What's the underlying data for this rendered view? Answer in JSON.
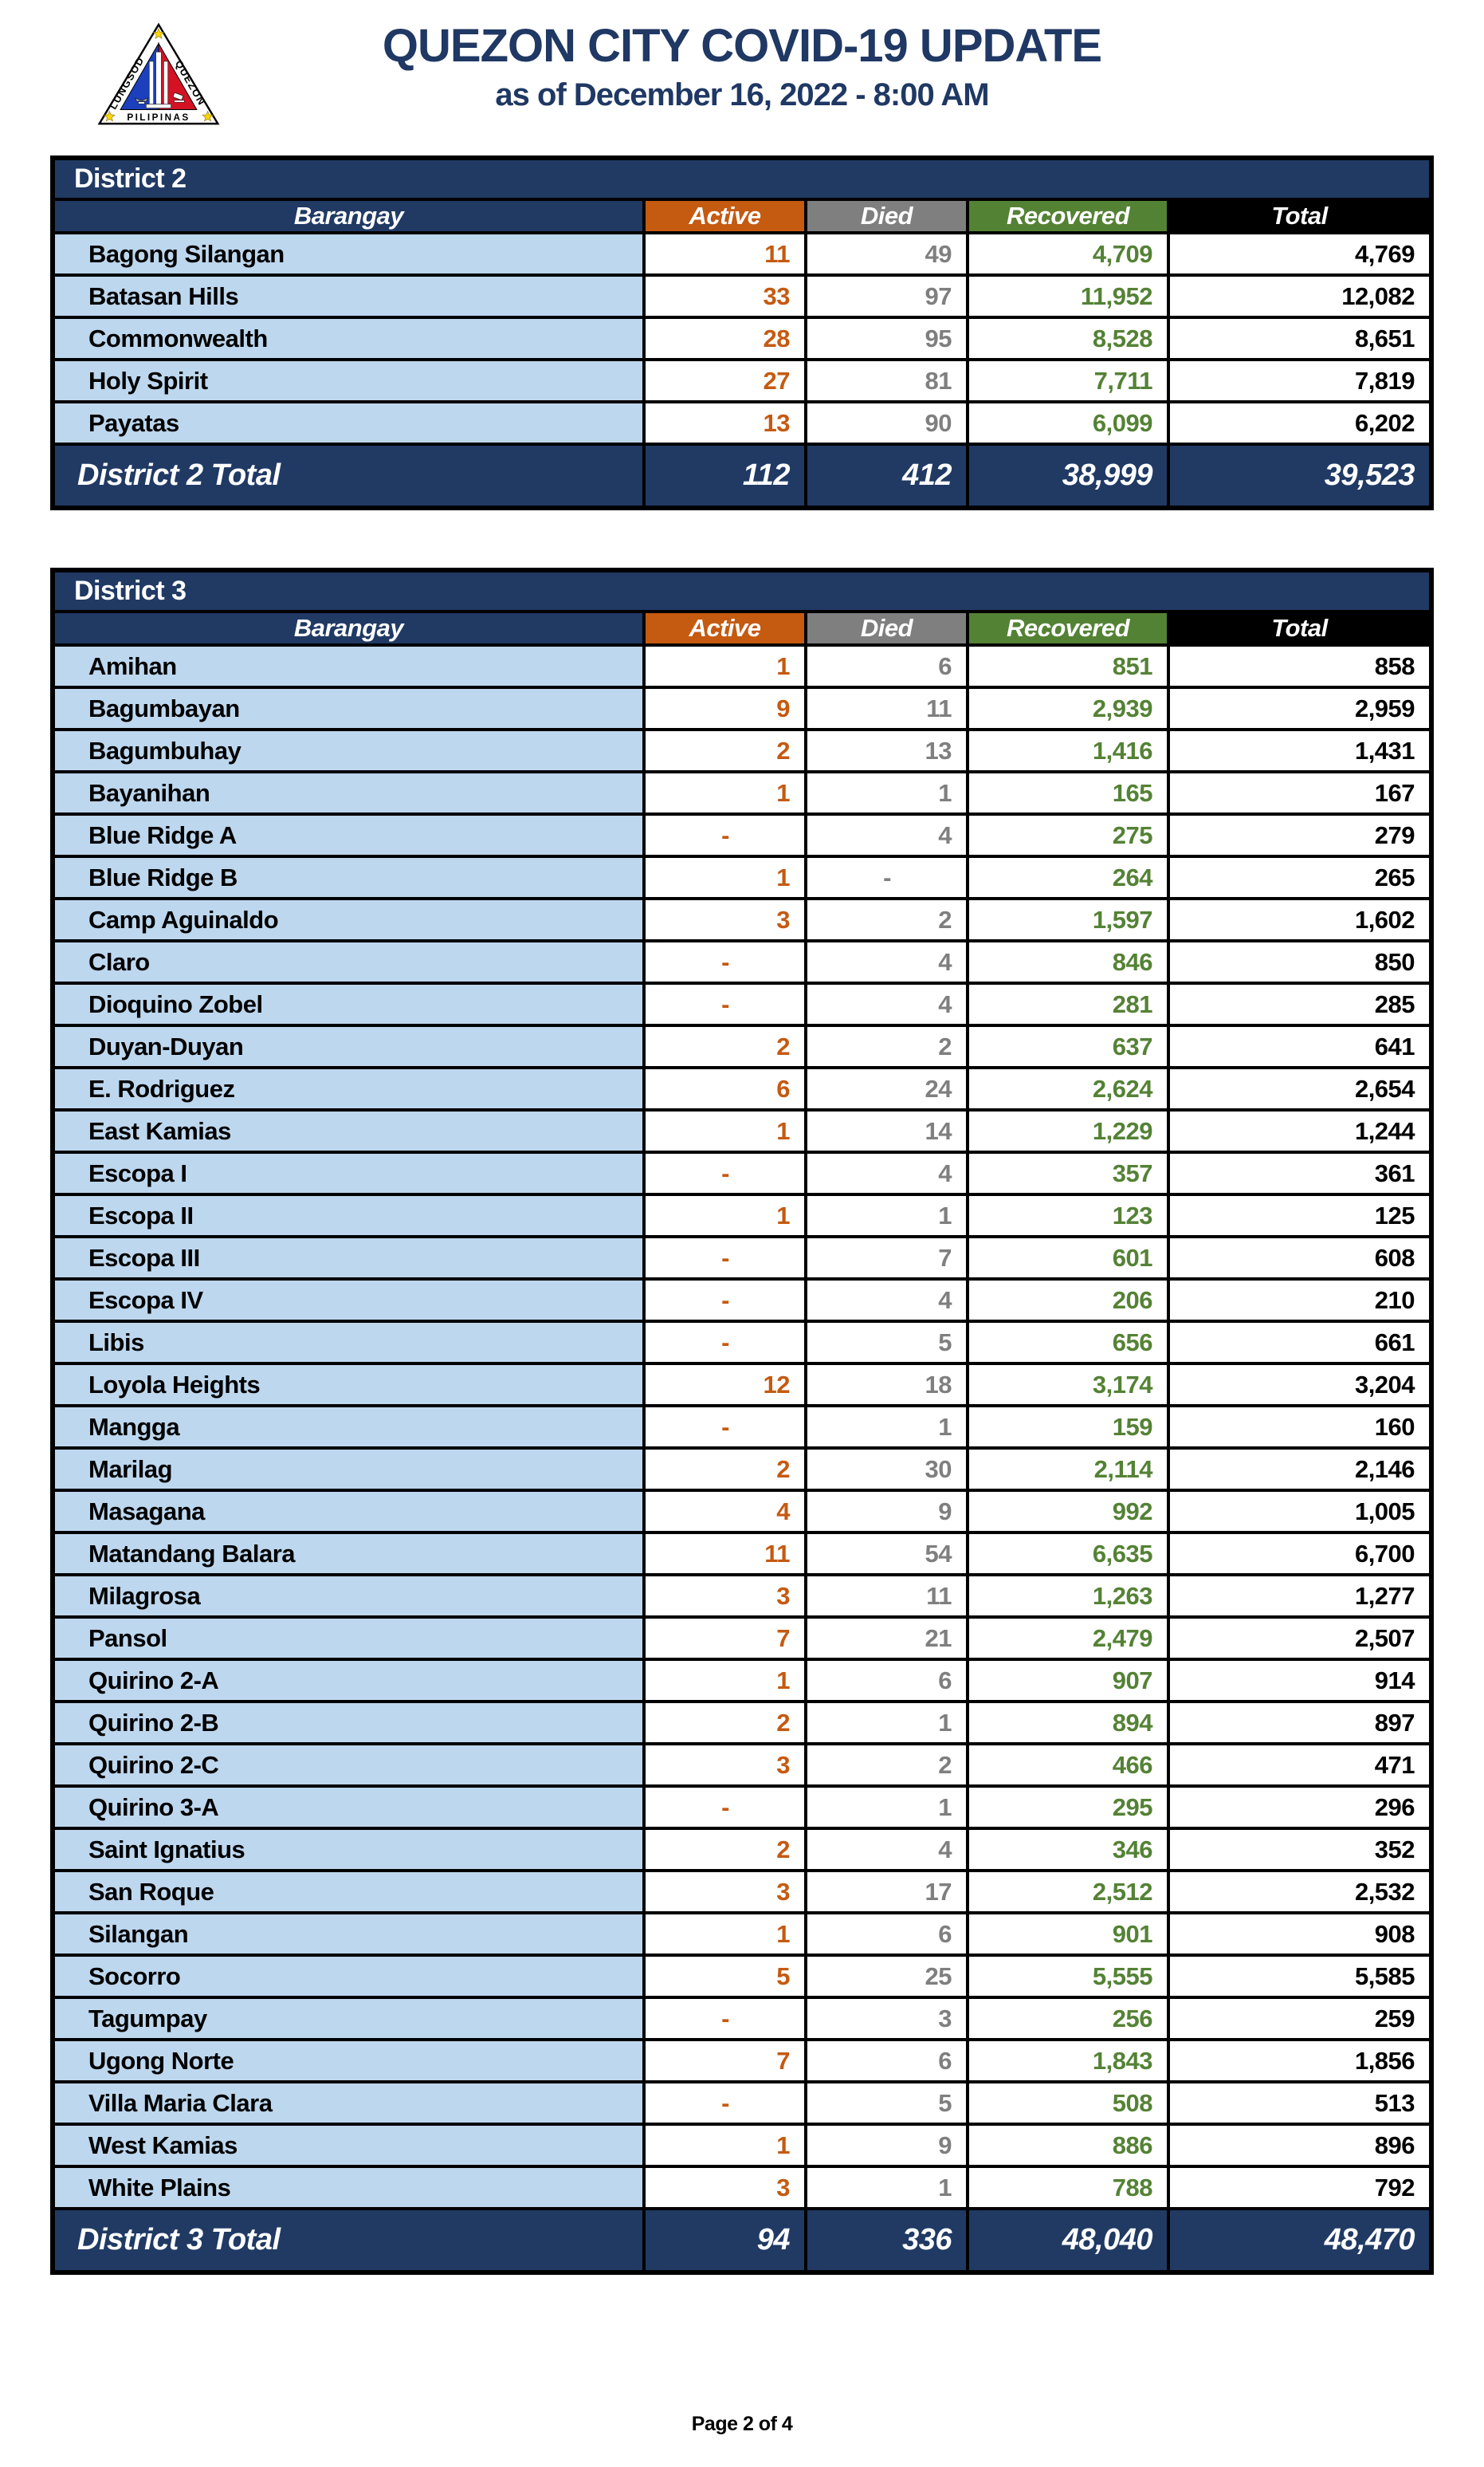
{
  "header": {
    "title": "QUEZON CITY COVID-19 UPDATE",
    "subtitle": "as of December 16, 2022 - 8:00 AM",
    "logo": {
      "left_text": "LUNGSOD",
      "right_text": "QUEZON",
      "bottom_text": "PILIPINAS"
    }
  },
  "colors": {
    "navy": "#203A64",
    "title_navy": "#1F3864",
    "row_light_blue": "#BDD7EE",
    "active_orange": "#C55A11",
    "died_gray": "#7F7F7F",
    "recovered_green": "#548235",
    "total_black": "#000000"
  },
  "columns": [
    "Barangay",
    "Active",
    "Died",
    "Recovered",
    "Total"
  ],
  "tables": [
    {
      "district": "District 2",
      "rows": [
        [
          "Bagong Silangan",
          "11",
          "49",
          "4,709",
          "4,769"
        ],
        [
          "Batasan Hills",
          "33",
          "97",
          "11,952",
          "12,082"
        ],
        [
          "Commonwealth",
          "28",
          "95",
          "8,528",
          "8,651"
        ],
        [
          "Holy Spirit",
          "27",
          "81",
          "7,711",
          "7,819"
        ],
        [
          "Payatas",
          "13",
          "90",
          "6,099",
          "6,202"
        ]
      ],
      "total": {
        "label": "District 2 Total",
        "values": [
          "112",
          "412",
          "38,999",
          "39,523"
        ]
      }
    },
    {
      "district": "District 3",
      "rows": [
        [
          "Amihan",
          "1",
          "6",
          "851",
          "858"
        ],
        [
          "Bagumbayan",
          "9",
          "11",
          "2,939",
          "2,959"
        ],
        [
          "Bagumbuhay",
          "2",
          "13",
          "1,416",
          "1,431"
        ],
        [
          "Bayanihan",
          "1",
          "1",
          "165",
          "167"
        ],
        [
          "Blue Ridge A",
          "-",
          "4",
          "275",
          "279"
        ],
        [
          "Blue Ridge B",
          "1",
          "-",
          "264",
          "265"
        ],
        [
          "Camp Aguinaldo",
          "3",
          "2",
          "1,597",
          "1,602"
        ],
        [
          "Claro",
          "-",
          "4",
          "846",
          "850"
        ],
        [
          "Dioquino Zobel",
          "-",
          "4",
          "281",
          "285"
        ],
        [
          "Duyan-Duyan",
          "2",
          "2",
          "637",
          "641"
        ],
        [
          "E. Rodriguez",
          "6",
          "24",
          "2,624",
          "2,654"
        ],
        [
          "East Kamias",
          "1",
          "14",
          "1,229",
          "1,244"
        ],
        [
          "Escopa I",
          "-",
          "4",
          "357",
          "361"
        ],
        [
          "Escopa II",
          "1",
          "1",
          "123",
          "125"
        ],
        [
          "Escopa III",
          "-",
          "7",
          "601",
          "608"
        ],
        [
          "Escopa IV",
          "-",
          "4",
          "206",
          "210"
        ],
        [
          "Libis",
          "-",
          "5",
          "656",
          "661"
        ],
        [
          "Loyola Heights",
          "12",
          "18",
          "3,174",
          "3,204"
        ],
        [
          "Mangga",
          "-",
          "1",
          "159",
          "160"
        ],
        [
          "Marilag",
          "2",
          "30",
          "2,114",
          "2,146"
        ],
        [
          "Masagana",
          "4",
          "9",
          "992",
          "1,005"
        ],
        [
          "Matandang Balara",
          "11",
          "54",
          "6,635",
          "6,700"
        ],
        [
          "Milagrosa",
          "3",
          "11",
          "1,263",
          "1,277"
        ],
        [
          "Pansol",
          "7",
          "21",
          "2,479",
          "2,507"
        ],
        [
          "Quirino 2-A",
          "1",
          "6",
          "907",
          "914"
        ],
        [
          "Quirino 2-B",
          "2",
          "1",
          "894",
          "897"
        ],
        [
          "Quirino 2-C",
          "3",
          "2",
          "466",
          "471"
        ],
        [
          "Quirino 3-A",
          "-",
          "1",
          "295",
          "296"
        ],
        [
          "Saint Ignatius",
          "2",
          "4",
          "346",
          "352"
        ],
        [
          "San Roque",
          "3",
          "17",
          "2,512",
          "2,532"
        ],
        [
          "Silangan",
          "1",
          "6",
          "901",
          "908"
        ],
        [
          "Socorro",
          "5",
          "25",
          "5,555",
          "5,585"
        ],
        [
          "Tagumpay",
          "-",
          "3",
          "256",
          "259"
        ],
        [
          "Ugong Norte",
          "7",
          "6",
          "1,843",
          "1,856"
        ],
        [
          "Villa Maria Clara",
          "-",
          "5",
          "508",
          "513"
        ],
        [
          "West Kamias",
          "1",
          "9",
          "886",
          "896"
        ],
        [
          "White Plains",
          "3",
          "1",
          "788",
          "792"
        ]
      ],
      "total": {
        "label": "District 3 Total",
        "values": [
          "94",
          "336",
          "48,040",
          "48,470"
        ]
      }
    }
  ],
  "footer": {
    "page": "Page 2 of 4"
  }
}
